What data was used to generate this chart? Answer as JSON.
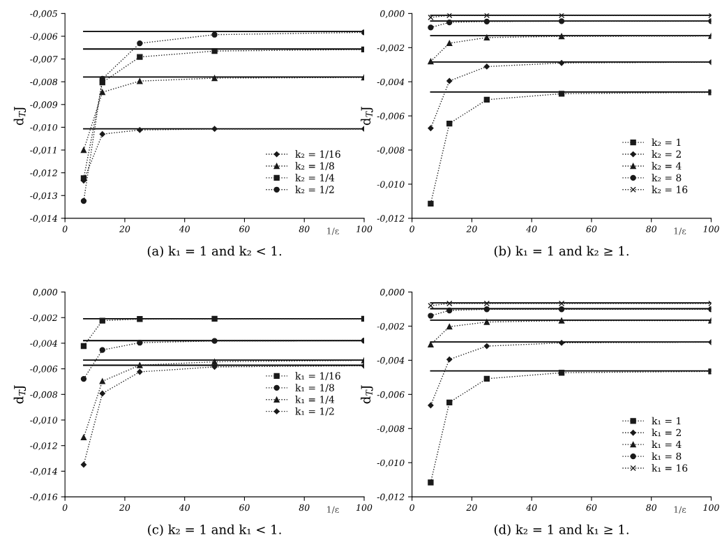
{
  "chart_data": [
    {
      "type": "line",
      "title": "(a) k₁ = 1 and k₂ < 1.",
      "xlabel": "1/ε",
      "ylabel": "d$_{T}$J",
      "x": [
        6.25,
        12.5,
        25,
        50,
        100
      ],
      "xlim": [
        0,
        100
      ],
      "xticks": [
        0,
        20,
        40,
        60,
        80,
        100
      ],
      "ylim": [
        -0.014,
        -0.005
      ],
      "yticks": [
        {
          "value": -0.014,
          "label": "-0,014"
        },
        {
          "value": -0.013,
          "label": "-0,013"
        },
        {
          "value": -0.012,
          "label": "-0,012"
        },
        {
          "value": -0.011,
          "label": "-0,011"
        },
        {
          "value": -0.01,
          "label": "-0,010"
        },
        {
          "value": -0.009,
          "label": "-0,009"
        },
        {
          "value": -0.008,
          "label": "-0,008"
        },
        {
          "value": -0.007,
          "label": "-0,007"
        },
        {
          "value": -0.006,
          "label": "-0,006"
        },
        {
          "value": -0.005,
          "label": "-0,005"
        }
      ],
      "legend": "lower right",
      "grid": false,
      "line_style": "dotted",
      "series": [
        {
          "name": "k₂ = 1/16",
          "color": "#1a1a1a",
          "marker": "diamond",
          "values": [
            -0.01234,
            -0.0103,
            -0.01012,
            -0.01007,
            -0.01007
          ]
        },
        {
          "name": "k₂ = 1/8",
          "color": "#1a1a1a",
          "marker": "triangle",
          "values": [
            -0.011,
            -0.00846,
            -0.00797,
            -0.00784,
            -0.00781
          ]
        },
        {
          "name": "k₂ = 1/4",
          "color": "#1a1a1a",
          "marker": "square",
          "values": [
            -0.01224,
            -0.00803,
            -0.00691,
            -0.00665,
            -0.00658
          ]
        },
        {
          "name": "k₂ = 1/2",
          "color": "#1a1a1a",
          "marker": "circle",
          "values": [
            -0.01324,
            -0.00787,
            -0.00631,
            -0.00593,
            -0.00583
          ]
        },
        {
          "color": "#000000",
          "marker": "none",
          "line_style": "solid",
          "values": [
            -0.01007,
            -0.01007,
            -0.01007,
            -0.01007,
            -0.01007
          ]
        },
        {
          "color": "#000000",
          "marker": "none",
          "line_style": "solid",
          "values": [
            -0.00779,
            -0.00779,
            -0.00779,
            -0.00779,
            -0.00779
          ]
        },
        {
          "color": "#000000",
          "marker": "none",
          "line_style": "solid",
          "values": [
            -0.00656,
            -0.00656,
            -0.00656,
            -0.00656,
            -0.00656
          ]
        },
        {
          "color": "#000000",
          "marker": "none",
          "line_style": "solid",
          "values": [
            -0.00579,
            -0.00579,
            -0.00579,
            -0.00579,
            -0.00579
          ]
        }
      ]
    },
    {
      "type": "line",
      "title": "(b) k₁ = 1 and k₂ ≥ 1.",
      "xlabel": "1/ε",
      "ylabel": "d$_{T}$J",
      "x": [
        6.25,
        12.5,
        25,
        50,
        100
      ],
      "xlim": [
        0,
        100
      ],
      "xticks": [
        0,
        20,
        40,
        60,
        80,
        100
      ],
      "ylim": [
        -0.012,
        0.0
      ],
      "yticks": [
        {
          "value": -0.012,
          "label": "-0,012"
        },
        {
          "value": -0.01,
          "label": "-0,010"
        },
        {
          "value": -0.008,
          "label": "-0,008"
        },
        {
          "value": -0.006,
          "label": "-0,006"
        },
        {
          "value": -0.004,
          "label": "-0,004"
        },
        {
          "value": -0.002,
          "label": "-0,002"
        },
        {
          "value": 0.0,
          "label": "0,000"
        }
      ],
      "legend": "lower right",
      "grid": false,
      "line_style": "dotted",
      "series": [
        {
          "name": "k₂ = 1",
          "color": "#1a1a1a",
          "marker": "square",
          "values": [
            -0.01114,
            -0.00645,
            -0.00505,
            -0.0047,
            -0.00462
          ]
        },
        {
          "name": "k₂ = 2",
          "color": "#1a1a1a",
          "marker": "diamond",
          "values": [
            -0.00672,
            -0.00395,
            -0.00311,
            -0.0029,
            -0.00285
          ]
        },
        {
          "name": "k₂ = 4",
          "color": "#1a1a1a",
          "marker": "triangle",
          "values": [
            -0.00281,
            -0.00174,
            -0.00141,
            -0.00134,
            -0.00132
          ]
        },
        {
          "name": "k₂ = 8",
          "color": "#1a1a1a",
          "marker": "circle",
          "values": [
            -0.00082,
            -0.00052,
            -0.00047,
            -0.00045,
            -0.00045
          ]
        },
        {
          "name": "k₂ = 16",
          "color": "#1a1a1a",
          "marker": "cross",
          "values": [
            -0.00023,
            -0.00011,
            -0.00011,
            -0.00011,
            -0.00011
          ]
        },
        {
          "color": "#000000",
          "marker": "none",
          "line_style": "solid",
          "values": [
            -0.0046,
            -0.0046,
            -0.0046,
            -0.0046,
            -0.0046
          ]
        },
        {
          "color": "#000000",
          "marker": "none",
          "line_style": "solid",
          "values": [
            -0.00284,
            -0.00284,
            -0.00284,
            -0.00284,
            -0.00284
          ]
        },
        {
          "color": "#000000",
          "marker": "none",
          "line_style": "solid",
          "values": [
            -0.0013,
            -0.0013,
            -0.0013,
            -0.0013,
            -0.0013
          ]
        },
        {
          "color": "#000000",
          "marker": "none",
          "line_style": "solid",
          "values": [
            -0.00044,
            -0.00044,
            -0.00044,
            -0.00044,
            -0.00044
          ]
        },
        {
          "color": "#000000",
          "marker": "none",
          "line_style": "solid",
          "values": [
            -0.0001,
            -0.0001,
            -0.0001,
            -0.0001,
            -0.0001
          ]
        }
      ]
    },
    {
      "type": "line",
      "title": "(c) k₂ = 1 and k₁ < 1.",
      "xlabel": "1/ε",
      "ylabel": "d$_{T}$J",
      "x": [
        6.25,
        12.5,
        25,
        50,
        100
      ],
      "xlim": [
        0,
        100
      ],
      "xticks": [
        0,
        20,
        40,
        60,
        80,
        100
      ],
      "ylim": [
        -0.016,
        0.0
      ],
      "yticks": [
        {
          "value": -0.016,
          "label": "-0,016"
        },
        {
          "value": -0.014,
          "label": "-0,014"
        },
        {
          "value": -0.012,
          "label": "-0,012"
        },
        {
          "value": -0.01,
          "label": "-0,010"
        },
        {
          "value": -0.008,
          "label": "-0,008"
        },
        {
          "value": -0.006,
          "label": "-0,006"
        },
        {
          "value": -0.004,
          "label": "-0,004"
        },
        {
          "value": -0.002,
          "label": "-0,002"
        },
        {
          "value": 0.0,
          "label": "0,000"
        }
      ],
      "legend": "center right",
      "grid": false,
      "line_style": "dotted",
      "series": [
        {
          "name": "k₁ = 1/16",
          "color": "#1a1a1a",
          "marker": "square",
          "values": [
            -0.00422,
            -0.00224,
            -0.00211,
            -0.00209,
            -0.00209
          ]
        },
        {
          "name": "k₁ = 1/8",
          "color": "#1a1a1a",
          "marker": "circle",
          "values": [
            -0.00679,
            -0.00453,
            -0.00396,
            -0.00382,
            -0.0038
          ]
        },
        {
          "name": "k₁ = 1/4",
          "color": "#1a1a1a",
          "marker": "triangle",
          "values": [
            -0.01136,
            -0.00697,
            -0.00572,
            -0.00545,
            -0.00534
          ]
        },
        {
          "name": "k₁ = 1/2",
          "color": "#1a1a1a",
          "marker": "diamond",
          "values": [
            -0.01349,
            -0.00793,
            -0.00624,
            -0.00585,
            -0.00576
          ]
        },
        {
          "color": "#000000",
          "marker": "none",
          "line_style": "solid",
          "values": [
            -0.00209,
            -0.00209,
            -0.00209,
            -0.00209,
            -0.00209
          ]
        },
        {
          "color": "#000000",
          "marker": "none",
          "line_style": "solid",
          "values": [
            -0.0038,
            -0.0038,
            -0.0038,
            -0.0038,
            -0.0038
          ]
        },
        {
          "color": "#000000",
          "marker": "none",
          "line_style": "solid",
          "values": [
            -0.00532,
            -0.00532,
            -0.00532,
            -0.00532,
            -0.00532
          ]
        },
        {
          "color": "#000000",
          "marker": "none",
          "line_style": "solid",
          "values": [
            -0.00572,
            -0.00572,
            -0.00572,
            -0.00572,
            -0.00572
          ]
        }
      ]
    },
    {
      "type": "line",
      "title": "(d) k₂ = 1 and k₁ ≥ 1.",
      "xlabel": "1/ε",
      "ylabel": "d$_{T}$J",
      "x": [
        6.25,
        12.5,
        25,
        50,
        100
      ],
      "xlim": [
        0,
        100
      ],
      "xticks": [
        0,
        20,
        40,
        60,
        80,
        100
      ],
      "ylim": [
        -0.012,
        0.0
      ],
      "yticks": [
        {
          "value": -0.012,
          "label": "-0,012"
        },
        {
          "value": -0.01,
          "label": "-0,010"
        },
        {
          "value": -0.008,
          "label": "-0,008"
        },
        {
          "value": -0.006,
          "label": "-0,006"
        },
        {
          "value": -0.004,
          "label": "-0,004"
        },
        {
          "value": -0.002,
          "label": "-0,002"
        },
        {
          "value": 0.0,
          "label": "0,000"
        }
      ],
      "legend": "lower right",
      "grid": false,
      "line_style": "dotted",
      "series": [
        {
          "name": "k₁ = 1",
          "color": "#1a1a1a",
          "marker": "square",
          "values": [
            -0.01116,
            -0.00647,
            -0.00508,
            -0.00473,
            -0.00465
          ]
        },
        {
          "name": "k₁ = 2",
          "color": "#1a1a1a",
          "marker": "diamond",
          "values": [
            -0.00664,
            -0.00395,
            -0.00317,
            -0.00298,
            -0.00294
          ]
        },
        {
          "name": "k₁ = 4",
          "color": "#1a1a1a",
          "marker": "triangle",
          "values": [
            -0.00308,
            -0.00203,
            -0.00176,
            -0.00168,
            -0.00168
          ]
        },
        {
          "name": "k₁ = 8",
          "color": "#1a1a1a",
          "marker": "circle",
          "values": [
            -0.00139,
            -0.00108,
            -0.00101,
            -0.00101,
            -0.00101
          ]
        },
        {
          "name": "k₁ = 16",
          "color": "#1a1a1a",
          "marker": "cross",
          "values": [
            -0.0008,
            -0.00067,
            -0.00067,
            -0.00067,
            -0.00067
          ]
        },
        {
          "color": "#000000",
          "marker": "none",
          "line_style": "solid",
          "values": [
            -0.00462,
            -0.00462,
            -0.00462,
            -0.00462,
            -0.00462
          ]
        },
        {
          "color": "#000000",
          "marker": "none",
          "line_style": "solid",
          "values": [
            -0.00293,
            -0.00293,
            -0.00293,
            -0.00293,
            -0.00293
          ]
        },
        {
          "color": "#000000",
          "marker": "none",
          "line_style": "solid",
          "values": [
            -0.00165,
            -0.00165,
            -0.00165,
            -0.00165,
            -0.00165
          ]
        },
        {
          "color": "#000000",
          "marker": "none",
          "line_style": "solid",
          "values": [
            -0.00098,
            -0.00098,
            -0.00098,
            -0.00098,
            -0.00098
          ]
        },
        {
          "color": "#000000",
          "marker": "none",
          "line_style": "solid",
          "values": [
            -0.00064,
            -0.00064,
            -0.00064,
            -0.00064,
            -0.00064
          ]
        }
      ]
    }
  ]
}
